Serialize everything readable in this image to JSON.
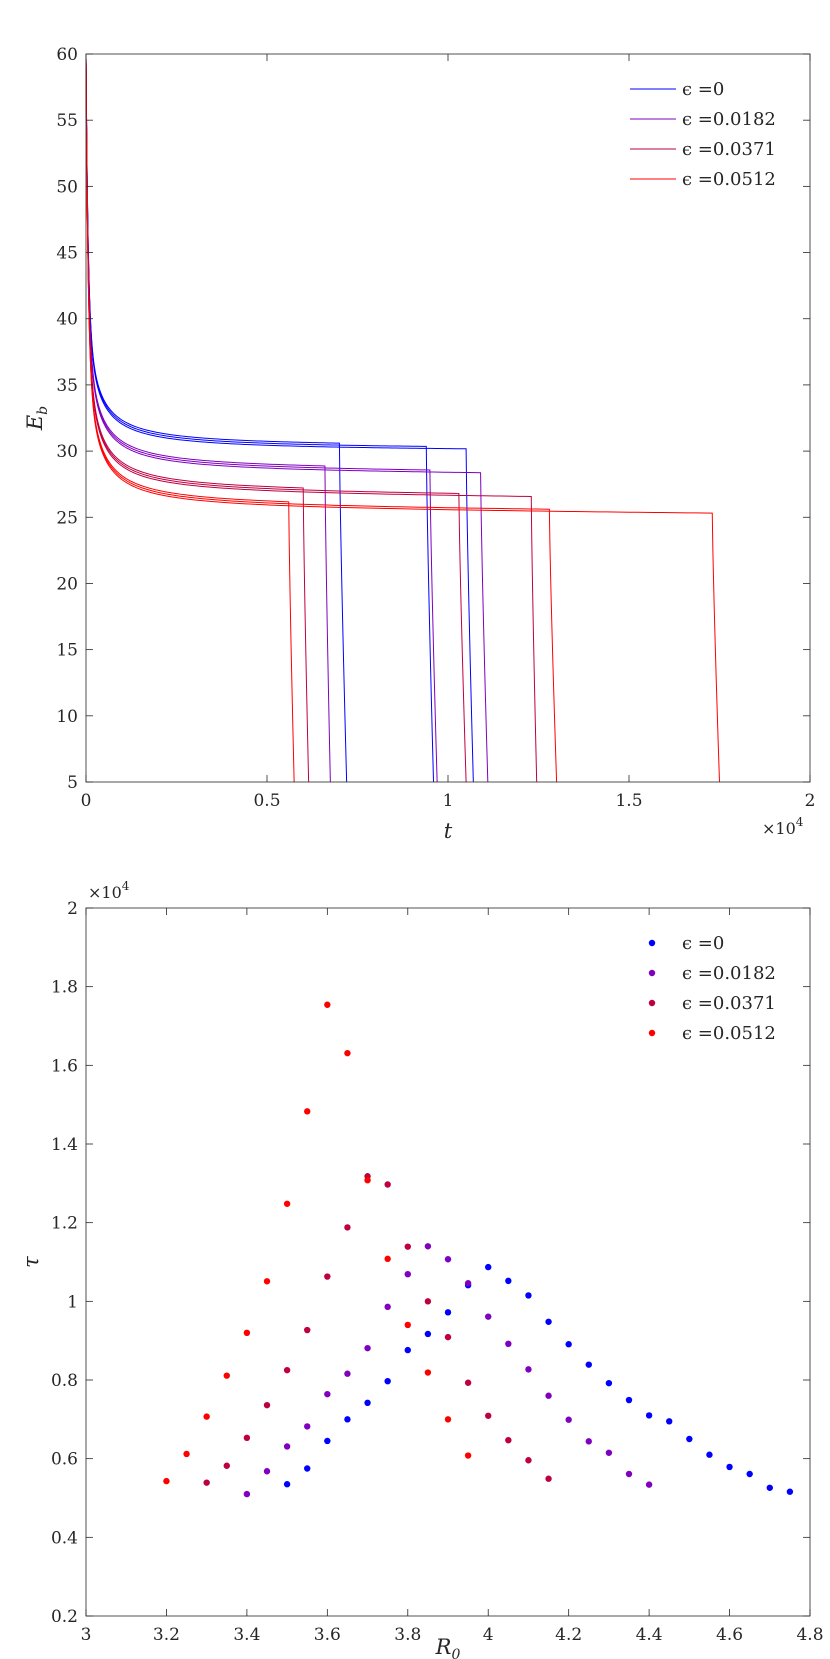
{
  "chart_data": [
    {
      "type": "line",
      "xlabel": "t",
      "ylabel": "E_b",
      "ylabel_main": "E",
      "ylabel_sub": "b",
      "xlim": [
        0,
        20000
      ],
      "ylim": [
        5,
        60
      ],
      "x_exponent_label": "×10",
      "x_exponent_power": "4",
      "xticks": [
        0,
        5000,
        10000,
        15000,
        20000
      ],
      "xtick_labels": [
        "0",
        "0.5",
        "1",
        "1.5",
        "2"
      ],
      "yticks": [
        5,
        10,
        15,
        20,
        25,
        30,
        35,
        40,
        45,
        50,
        55,
        60
      ],
      "ytick_labels": [
        "5",
        "10",
        "15",
        "20",
        "25",
        "30",
        "35",
        "40",
        "45",
        "50",
        "55",
        "60"
      ],
      "legend_position": "top-right",
      "series": [
        {
          "name": "ϵ =0",
          "color": "#0000ff",
          "plateau_start": 30.3,
          "plateau_end": 30.2,
          "plateau_shift": 0,
          "curves": [
            {
              "drop_time": 7000,
              "end_time": 7200
            },
            {
              "drop_time": 9400,
              "end_time": 9600
            },
            {
              "drop_time": 10500,
              "end_time": 10700
            }
          ]
        },
        {
          "name": "ϵ =0.0182",
          "color": "#7f00bf",
          "plateau_start": 28.6,
          "plateau_end": 28.3,
          "plateau_shift": 0.6,
          "curves": [
            {
              "drop_time": 6600,
              "end_time": 6750
            },
            {
              "drop_time": 9500,
              "end_time": 9700
            },
            {
              "drop_time": 10900,
              "end_time": 11100
            }
          ]
        },
        {
          "name": "ϵ =0.0371",
          "color": "#bf0040",
          "plateau_start": 26.9,
          "plateau_end": 26.5,
          "plateau_shift": 1.2,
          "curves": [
            {
              "drop_time": 6000,
              "end_time": 6150
            },
            {
              "drop_time": 10300,
              "end_time": 10500
            },
            {
              "drop_time": 12300,
              "end_time": 12450
            }
          ]
        },
        {
          "name": "ϵ =0.0512",
          "color": "#ff0000",
          "plateau_start": 25.8,
          "plateau_end": 25.4,
          "plateau_shift": 1.8,
          "curves": [
            {
              "drop_time": 5600,
              "end_time": 5750
            },
            {
              "drop_time": 12800,
              "end_time": 13000
            },
            {
              "drop_time": 17300,
              "end_time": 17500
            }
          ]
        }
      ]
    },
    {
      "type": "scatter",
      "xlabel": "R_0",
      "xlabel_main": "R",
      "xlabel_sub": "0",
      "ylabel": "τ",
      "xlim": [
        3,
        4.8
      ],
      "ylim": [
        2000,
        20000
      ],
      "y_exponent_label": "×10",
      "y_exponent_power": "4",
      "xticks": [
        3,
        3.2,
        3.4,
        3.6,
        3.8,
        4,
        4.2,
        4.4,
        4.6,
        4.8
      ],
      "xtick_labels": [
        "3",
        "3.2",
        "3.4",
        "3.6",
        "3.8",
        "4",
        "4.2",
        "4.4",
        "4.6",
        "4.8"
      ],
      "yticks": [
        2000,
        4000,
        6000,
        8000,
        10000,
        12000,
        14000,
        16000,
        18000,
        20000
      ],
      "ytick_labels": [
        "0.2",
        "0.4",
        "0.6",
        "0.8",
        "1",
        "1.2",
        "1.4",
        "1.6",
        "1.8",
        "2"
      ],
      "legend_position": "top-right",
      "series": [
        {
          "name": "ϵ =0",
          "color": "#0000ff",
          "x": [
            3.5,
            3.55,
            3.6,
            3.65,
            3.7,
            3.75,
            3.8,
            3.85,
            3.9,
            3.95,
            4.0,
            4.05,
            4.1,
            4.15,
            4.2,
            4.25,
            4.3,
            4.35,
            4.4,
            4.45,
            4.5,
            4.55,
            4.6,
            4.65,
            4.7,
            4.75
          ],
          "y": [
            5350,
            5750,
            6450,
            7000,
            7420,
            7970,
            8760,
            9170,
            9720,
            10410,
            10870,
            10520,
            10150,
            9480,
            8910,
            8390,
            7920,
            7490,
            7100,
            6950,
            6500,
            6100,
            5790,
            5610,
            5260,
            5160
          ]
        },
        {
          "name": "ϵ =0.0182",
          "color": "#7f00bf",
          "x": [
            3.4,
            3.45,
            3.5,
            3.55,
            3.6,
            3.65,
            3.7,
            3.75,
            3.8,
            3.85,
            3.9,
            3.95,
            4.0,
            4.05,
            4.1,
            4.15,
            4.2,
            4.25,
            4.3,
            4.35,
            4.4
          ],
          "y": [
            5100,
            5680,
            6310,
            6820,
            7640,
            8160,
            8810,
            9860,
            10690,
            11400,
            11070,
            10460,
            9610,
            8920,
            8270,
            7600,
            6990,
            6440,
            6150,
            5610,
            5340
          ]
        },
        {
          "name": "ϵ =0.0371",
          "color": "#bf0040",
          "x": [
            3.3,
            3.35,
            3.4,
            3.45,
            3.5,
            3.55,
            3.6,
            3.65,
            3.7,
            3.75,
            3.8,
            3.85,
            3.9,
            3.95,
            4.0,
            4.05,
            4.1,
            4.15
          ],
          "y": [
            5390,
            5820,
            6530,
            7360,
            8250,
            9270,
            10630,
            11880,
            13180,
            12970,
            11390,
            10000,
            9090,
            7930,
            7090,
            6470,
            5960,
            5490
          ]
        },
        {
          "name": "ϵ =0.0512",
          "color": "#ff0000",
          "x": [
            3.2,
            3.25,
            3.3,
            3.35,
            3.4,
            3.45,
            3.5,
            3.55,
            3.6,
            3.65,
            3.7,
            3.75,
            3.8,
            3.85,
            3.9,
            3.95
          ],
          "y": [
            5430,
            6120,
            7070,
            8110,
            9200,
            10510,
            12480,
            14830,
            17540,
            16310,
            13080,
            11080,
            9400,
            8190,
            7000,
            6080
          ]
        }
      ]
    }
  ]
}
